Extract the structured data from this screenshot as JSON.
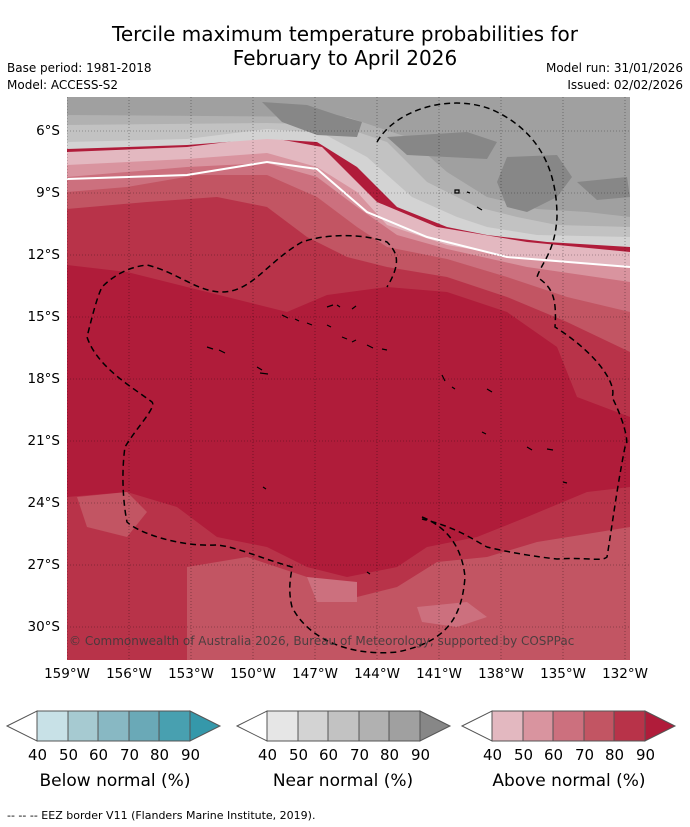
{
  "title": {
    "line1": "Tercile maximum temperature probabilities for",
    "line2": "February to April 2026"
  },
  "meta": {
    "base_period": "Base period: 1981-2018",
    "model": "Model: ACCESS-S2",
    "model_run": "Model run: 31/01/2026",
    "issued": "Issued: 02/02/2026"
  },
  "map": {
    "lat_labels": [
      "6°S",
      "9°S",
      "12°S",
      "15°S",
      "18°S",
      "21°S",
      "24°S",
      "27°S",
      "30°S"
    ],
    "lon_labels": [
      "159°W",
      "156°W",
      "153°W",
      "150°W",
      "147°W",
      "144°W",
      "141°W",
      "138°W",
      "135°W",
      "132°W"
    ],
    "copyright": "© Commonwealth of Australia 2026, Bureau of Meteorology, supported by COSPPac"
  },
  "colorbars": {
    "ticks": [
      "40",
      "50",
      "60",
      "70",
      "80",
      "90"
    ],
    "below": {
      "caption": "Below normal (%)",
      "colors": [
        "#c8e1e7",
        "#a6cad1",
        "#88b8c3",
        "#6aa9b7",
        "#48a0b0",
        "#3598aa"
      ]
    },
    "near": {
      "caption": "Near normal (%)",
      "colors": [
        "#e6e6e6",
        "#d3d3d3",
        "#c2c2c2",
        "#b1b1b1",
        "#a0a0a0",
        "#878787"
      ]
    },
    "above": {
      "caption": "Above normal (%)",
      "colors": [
        "#e3b8c0",
        "#d9949f",
        "#cc707e",
        "#c25563",
        "#b83349",
        "#b01c3a"
      ]
    }
  },
  "footer": "--  --  -- EEZ border V11 (Flanders Marine Institute, 2019)."
}
